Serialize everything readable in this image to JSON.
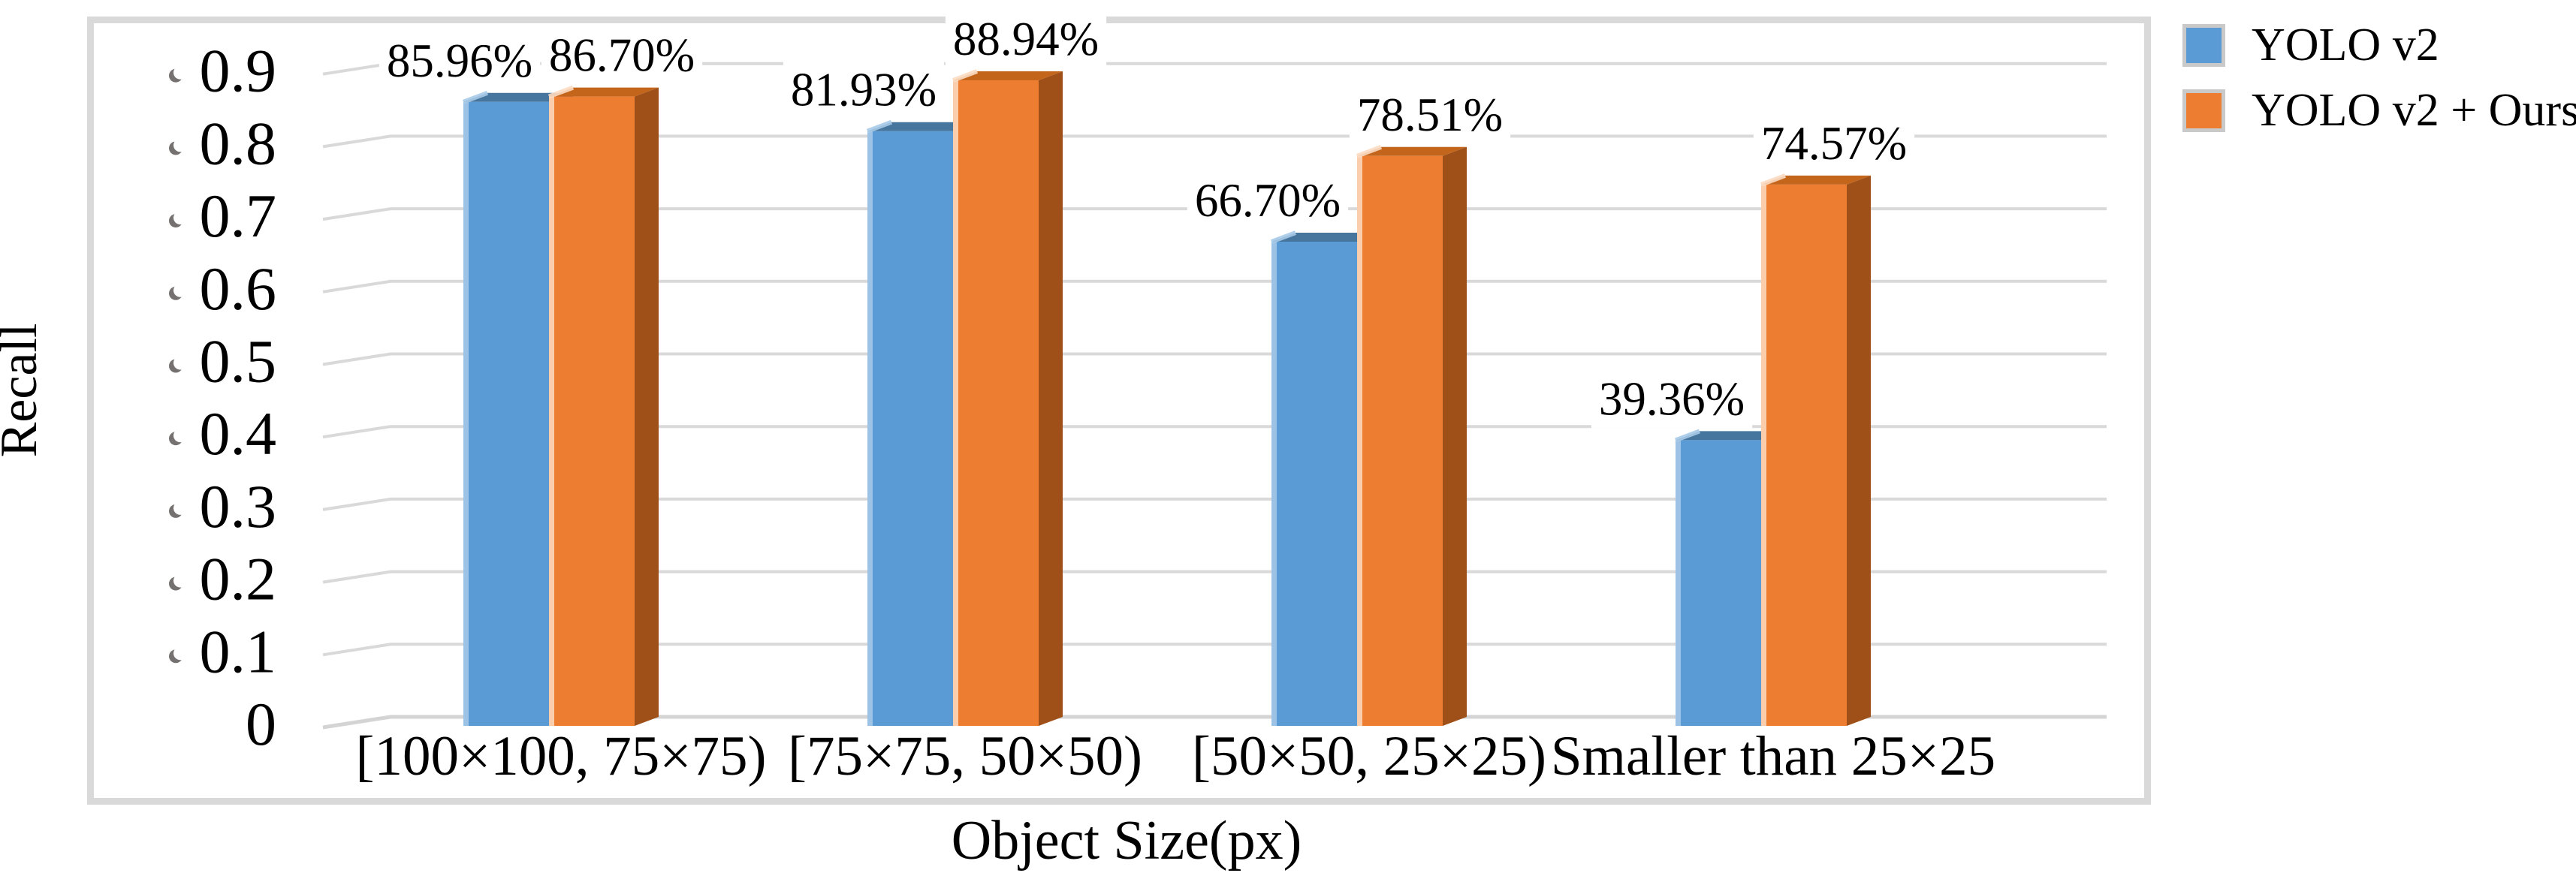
{
  "y_axis": {
    "title": "Recall",
    "ticks": [
      {
        "value": 0.0,
        "label": "0"
      },
      {
        "value": 0.1,
        "label": "0.1"
      },
      {
        "value": 0.2,
        "label": "0.2"
      },
      {
        "value": 0.3,
        "label": "0.3"
      },
      {
        "value": 0.4,
        "label": "0.4"
      },
      {
        "value": 0.5,
        "label": "0.5"
      },
      {
        "value": 0.6,
        "label": "0.6"
      },
      {
        "value": 0.7,
        "label": "0.7"
      },
      {
        "value": 0.8,
        "label": "0.8"
      },
      {
        "value": 0.9,
        "label": "0.9"
      }
    ]
  },
  "x_axis": {
    "title": "Object Size(px)"
  },
  "legend": [
    {
      "label": "YOLO v2",
      "color": "#5B9BD5"
    },
    {
      "label": "YOLO v2 + Ours",
      "color": "#ED7D31"
    }
  ],
  "colors": {
    "gridline": "#d9d9d9",
    "axis_line": "#d4d4d4",
    "frame_border": "#d9d9d9",
    "tick_mark": "#767171",
    "label_text": "#000000"
  },
  "chart_data": {
    "type": "bar",
    "style": "3d-clustered-column",
    "title": "",
    "xlabel": "Object Size(px)",
    "ylabel": "Recall",
    "ylim": [
      0,
      0.9
    ],
    "grid": true,
    "legend_position": "top-right",
    "categories": [
      "[100×100, 75×75)",
      "[75×75, 50×50)",
      "[50×50, 25×25)",
      "Smaller than 25×25"
    ],
    "series": [
      {
        "name": "YOLO v2",
        "color": "#5B9BD5",
        "color_top": "#46759E",
        "color_side": "#3C6A96",
        "color_highlight": "#A8CAE8",
        "values": [
          0.8596,
          0.8193,
          0.667,
          0.3936
        ],
        "labels": [
          "85.96%",
          "81.93%",
          "66.70%",
          "39.36%"
        ]
      },
      {
        "name": "YOLO v2 + Ours",
        "color": "#ED7D31",
        "color_top": "#C4651C",
        "color_side": "#9E5018",
        "color_highlight": "#FBDCC3",
        "values": [
          0.867,
          0.8894,
          0.7851,
          0.7457
        ],
        "labels": [
          "86.70%",
          "88.94%",
          "78.51%",
          "74.57%"
        ]
      }
    ]
  }
}
